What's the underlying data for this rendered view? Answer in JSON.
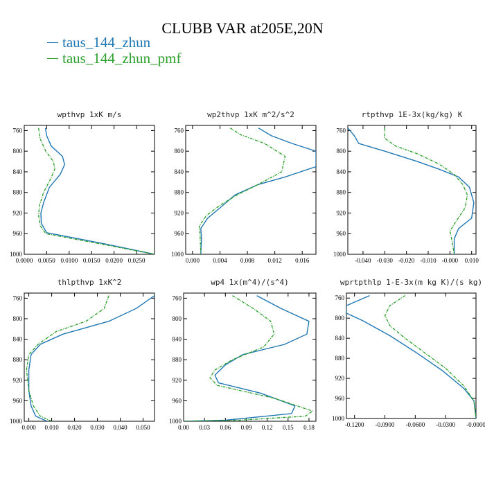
{
  "title": "CLUBB VAR at205E,20N",
  "colors": {
    "zhun": "#1f77b4",
    "pmf": "#2ca02c"
  },
  "legend": [
    {
      "label": "taus_144_zhun",
      "color": "#1f77b4",
      "dashed": false
    },
    {
      "label": "taus_144_zhun_pmf",
      "color": "#2ca02c",
      "dashed": true
    }
  ],
  "chart_data": [
    {
      "type": "line",
      "title": "wpthvp  1xK m/s",
      "xlim": [
        0,
        0.029
      ],
      "ylim": [
        1000,
        750
      ],
      "xticks": [
        0,
        0.005,
        0.01,
        0.015,
        0.02,
        0.025
      ],
      "xtick_labels": [
        "0.0000",
        "0.0050",
        "0.0100",
        "0.0150",
        "0.0200",
        "0.0250"
      ],
      "yticks": [
        760,
        800,
        840,
        880,
        920,
        960,
        1000
      ],
      "ytick_labels": [
        "760",
        "800",
        "840",
        "880",
        "920",
        "960",
        "1000"
      ],
      "series": [
        {
          "name": "taus_144_zhun",
          "color": "#1f77b4",
          "dashed": false,
          "x": [
            0.0047,
            0.005,
            0.006,
            0.0085,
            0.009,
            0.008,
            0.0056,
            0.0043,
            0.0037,
            0.0038,
            0.005,
            0.018,
            0.029
          ],
          "y": [
            755,
            770,
            790,
            810,
            826,
            845,
            870,
            900,
            920,
            940,
            958,
            980,
            1000
          ]
        },
        {
          "name": "taus_144_zhun_pmf",
          "color": "#2ca02c",
          "dashed": true,
          "x": [
            0.0032,
            0.0035,
            0.0048,
            0.0065,
            0.0068,
            0.0058,
            0.0043,
            0.0034,
            0.0032,
            0.0036,
            0.0048,
            0.017,
            0.029
          ],
          "y": [
            755,
            775,
            800,
            820,
            835,
            855,
            880,
            905,
            925,
            945,
            960,
            980,
            1000
          ]
        }
      ]
    },
    {
      "type": "line",
      "title": "wp2thvp  1xK m^2/s^2",
      "xlim": [
        -0.001,
        0.018
      ],
      "ylim": [
        1000,
        750
      ],
      "xticks": [
        0,
        0.004,
        0.008,
        0.012,
        0.016
      ],
      "xtick_labels": [
        "0.000",
        "0.004",
        "0.008",
        "0.012",
        "0.016"
      ],
      "yticks": [
        760,
        800,
        840,
        880,
        920,
        960,
        1000
      ],
      "ytick_labels": [
        "760",
        "800",
        "840",
        "880",
        "920",
        "960",
        "1000"
      ],
      "series": [
        {
          "name": "taus_144_zhun",
          "color": "#1f77b4",
          "dashed": false,
          "x": [
            0.0096,
            0.0115,
            0.0145,
            0.018,
            0.018,
            0.0135,
            0.0095,
            0.0062,
            0.004,
            0.0022,
            0.0012,
            0.0013,
            0.0012
          ],
          "y": [
            755,
            770,
            785,
            800,
            830,
            850,
            865,
            885,
            910,
            930,
            950,
            970,
            1000
          ]
        },
        {
          "name": "taus_144_zhun_pmf",
          "color": "#2ca02c",
          "dashed": true,
          "x": [
            0.0055,
            0.007,
            0.0105,
            0.0135,
            0.013,
            0.0095,
            0.0065,
            0.004,
            0.002,
            0.001,
            0.0011,
            0.0012
          ],
          "y": [
            755,
            768,
            785,
            810,
            840,
            865,
            885,
            905,
            925,
            945,
            965,
            1000
          ]
        }
      ]
    },
    {
      "type": "line",
      "title": "rtpthvp  1E-3x(kg/kg) K",
      "xlim": [
        -0.047,
        0.012
      ],
      "ylim": [
        1000,
        750
      ],
      "xticks": [
        -0.04,
        -0.03,
        -0.02,
        -0.01,
        0,
        0.01
      ],
      "xtick_labels": [
        "-0.040",
        "-0.030",
        "-0.020",
        "-0.010",
        "-0.000",
        "0.010"
      ],
      "yticks": [
        760,
        800,
        840,
        880,
        920,
        960,
        1000
      ],
      "ytick_labels": [
        "760",
        "800",
        "840",
        "880",
        "920",
        "960",
        "1000"
      ],
      "series": [
        {
          "name": "taus_144_zhun",
          "color": "#1f77b4",
          "dashed": false,
          "x": [
            -0.047,
            -0.044,
            -0.042,
            -0.03,
            -0.015,
            -0.005,
            0.004,
            0.009,
            0.011,
            0.01,
            0.004,
            0.002,
            0.002
          ],
          "y": [
            755,
            770,
            785,
            800,
            820,
            835,
            850,
            870,
            900,
            930,
            950,
            970,
            1000
          ]
        },
        {
          "name": "taus_144_zhun_pmf",
          "color": "#2ca02c",
          "dashed": true,
          "x": [
            -0.03,
            -0.03,
            -0.025,
            -0.015,
            -0.005,
            0.002,
            0.006,
            0.008,
            0.007,
            0.003,
            0.0,
            0.001,
            0.002
          ],
          "y": [
            755,
            775,
            790,
            805,
            825,
            845,
            865,
            885,
            910,
            935,
            955,
            975,
            1000
          ]
        }
      ]
    },
    {
      "type": "line",
      "title": "thlpthvp  1xK^2",
      "xlim": [
        -0.002,
        0.055
      ],
      "ylim": [
        1000,
        750
      ],
      "xticks": [
        0,
        0.01,
        0.02,
        0.03,
        0.04,
        0.05
      ],
      "xtick_labels": [
        "0.000",
        "0.010",
        "0.020",
        "0.030",
        "0.040",
        "0.050"
      ],
      "yticks": [
        760,
        800,
        840,
        880,
        920,
        960,
        1000
      ],
      "ytick_labels": [
        "760",
        "800",
        "840",
        "880",
        "920",
        "960",
        "1000"
      ],
      "series": [
        {
          "name": "taus_144_zhun",
          "color": "#1f77b4",
          "dashed": false,
          "x": [
            0.055,
            0.047,
            0.035,
            0.015,
            0.005,
            0.001,
            0.0,
            0.0,
            0.001,
            0.003,
            0.008
          ],
          "y": [
            755,
            780,
            805,
            830,
            850,
            870,
            900,
            940,
            970,
            990,
            1000
          ]
        },
        {
          "name": "taus_144_zhun_pmf",
          "color": "#2ca02c",
          "dashed": true,
          "x": [
            0.035,
            0.033,
            0.025,
            0.012,
            0.004,
            0.0,
            -0.001,
            0.0,
            0.002,
            0.005,
            0.01
          ],
          "y": [
            755,
            780,
            805,
            825,
            850,
            870,
            900,
            940,
            970,
            990,
            1000
          ]
        }
      ]
    },
    {
      "type": "line",
      "title": "wp4  1x(m^4)/(s^4)",
      "xlim": [
        0,
        0.19
      ],
      "ylim": [
        1000,
        750
      ],
      "xticks": [
        0,
        0.03,
        0.06,
        0.09,
        0.12,
        0.15,
        0.18
      ],
      "xtick_labels": [
        "0.00",
        "0.03",
        "0.06",
        "0.09",
        "0.12",
        "0.15",
        "0.18"
      ],
      "yticks": [
        760,
        800,
        840,
        880,
        920,
        960,
        1000
      ],
      "ytick_labels": [
        "760",
        "800",
        "840",
        "880",
        "920",
        "960",
        "1000"
      ],
      "series": [
        {
          "name": "taus_144_zhun",
          "color": "#1f77b4",
          "dashed": false,
          "x": [
            0.105,
            0.14,
            0.18,
            0.177,
            0.145,
            0.085,
            0.06,
            0.045,
            0.05,
            0.11,
            0.16,
            0.155,
            0.06,
            0.0
          ],
          "y": [
            755,
            780,
            805,
            830,
            850,
            870,
            890,
            910,
            925,
            945,
            970,
            985,
            998,
            1000
          ]
        },
        {
          "name": "taus_144_zhun_pmf",
          "color": "#2ca02c",
          "dashed": true,
          "x": [
            0.07,
            0.1,
            0.125,
            0.13,
            0.115,
            0.07,
            0.045,
            0.038,
            0.048,
            0.13,
            0.185,
            0.175,
            0.08,
            0.0
          ],
          "y": [
            755,
            780,
            805,
            830,
            855,
            880,
            900,
            915,
            930,
            955,
            980,
            990,
            998,
            1000
          ]
        }
      ]
    },
    {
      "type": "line",
      "title": "wprtpthlp  1-E-3x(m kg K)/(s kg)",
      "xlim": [
        -0.128,
        0.0
      ],
      "ylim": [
        1000,
        750
      ],
      "xticks": [
        -0.12,
        -0.09,
        -0.06,
        -0.03,
        0
      ],
      "xtick_labels": [
        "-0.1200",
        "-0.0900",
        "-0.0600",
        "-0.0300",
        "-0.0000"
      ],
      "yticks": [
        760,
        800,
        840,
        880,
        920,
        960,
        1000
      ],
      "ytick_labels": [
        "760",
        "800",
        "840",
        "880",
        "920",
        "960",
        "1000"
      ],
      "series": [
        {
          "name": "taus_144_zhun",
          "color": "#1f77b4",
          "dashed": false,
          "x": [
            -0.105,
            -0.128,
            -0.128,
            -0.112,
            -0.085,
            -0.058,
            -0.033,
            -0.012,
            -0.002,
            0.0
          ],
          "y": [
            755,
            775,
            790,
            805,
            835,
            870,
            905,
            940,
            965,
            1000
          ]
        },
        {
          "name": "taus_144_zhun_pmf",
          "color": "#2ca02c",
          "dashed": true,
          "x": [
            -0.07,
            -0.085,
            -0.09,
            -0.085,
            -0.07,
            -0.05,
            -0.03,
            -0.012,
            -0.002,
            0.0
          ],
          "y": [
            755,
            775,
            795,
            815,
            840,
            870,
            900,
            935,
            965,
            1000
          ]
        }
      ]
    }
  ]
}
